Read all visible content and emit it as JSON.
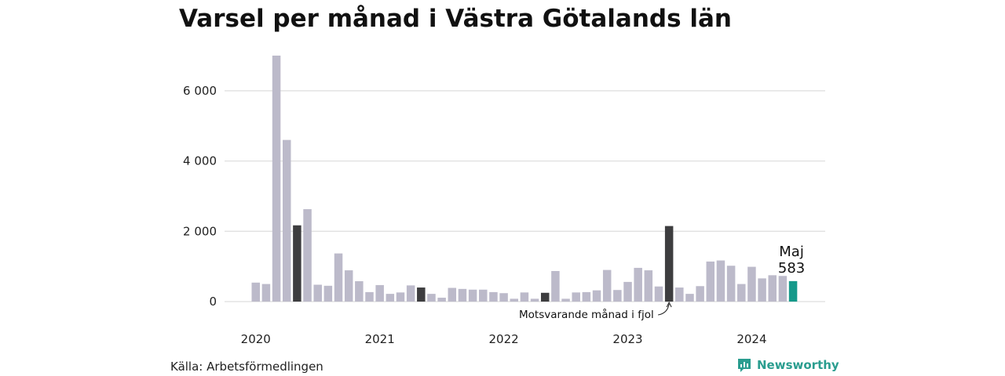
{
  "title": "Varsel per månad i Västra Götalands län",
  "source": "Källa: Arbetsförmedlingen",
  "brand": {
    "name": "Newsworthy",
    "icon": "newsworthy-logo-icon",
    "color": "#2a9d8f"
  },
  "colors": {
    "default": "#bcbaca",
    "same_month": "#3d3d3f",
    "current": "#15998a",
    "grid": "#dddddd"
  },
  "chart_data": {
    "type": "bar",
    "title": "Varsel per månad i Västra Götalands län",
    "xlabel": "",
    "ylabel": "",
    "start": "2020-01",
    "ylim": [
      0,
      7000
    ],
    "yticks": [
      {
        "value": 0,
        "label": "0"
      },
      {
        "value": 2000,
        "label": "2 000"
      },
      {
        "value": 4000,
        "label": "4 000"
      },
      {
        "value": 6000,
        "label": "6 000"
      }
    ],
    "xticks": [
      {
        "index": 0,
        "label": "2020"
      },
      {
        "index": 12,
        "label": "2021"
      },
      {
        "index": 24,
        "label": "2022"
      },
      {
        "index": 36,
        "label": "2023"
      },
      {
        "index": 48,
        "label": "2024"
      }
    ],
    "values": [
      540,
      500,
      7000,
      4600,
      2170,
      2630,
      480,
      450,
      1370,
      890,
      580,
      270,
      470,
      220,
      260,
      460,
      400,
      220,
      110,
      390,
      360,
      340,
      340,
      270,
      240,
      80,
      260,
      80,
      250,
      870,
      80,
      260,
      270,
      320,
      900,
      330,
      560,
      960,
      890,
      430,
      2150,
      400,
      220,
      440,
      1140,
      1170,
      1020,
      500,
      990,
      660,
      750,
      730,
      583
    ],
    "highlights": {
      "same_month": [
        4,
        16,
        28,
        40
      ],
      "current": 52
    },
    "callout": {
      "index": 52,
      "label": "Maj",
      "value": "583"
    },
    "annotation": {
      "index": 40,
      "text": "Motsvarande månad i fjol"
    },
    "grid": true
  }
}
